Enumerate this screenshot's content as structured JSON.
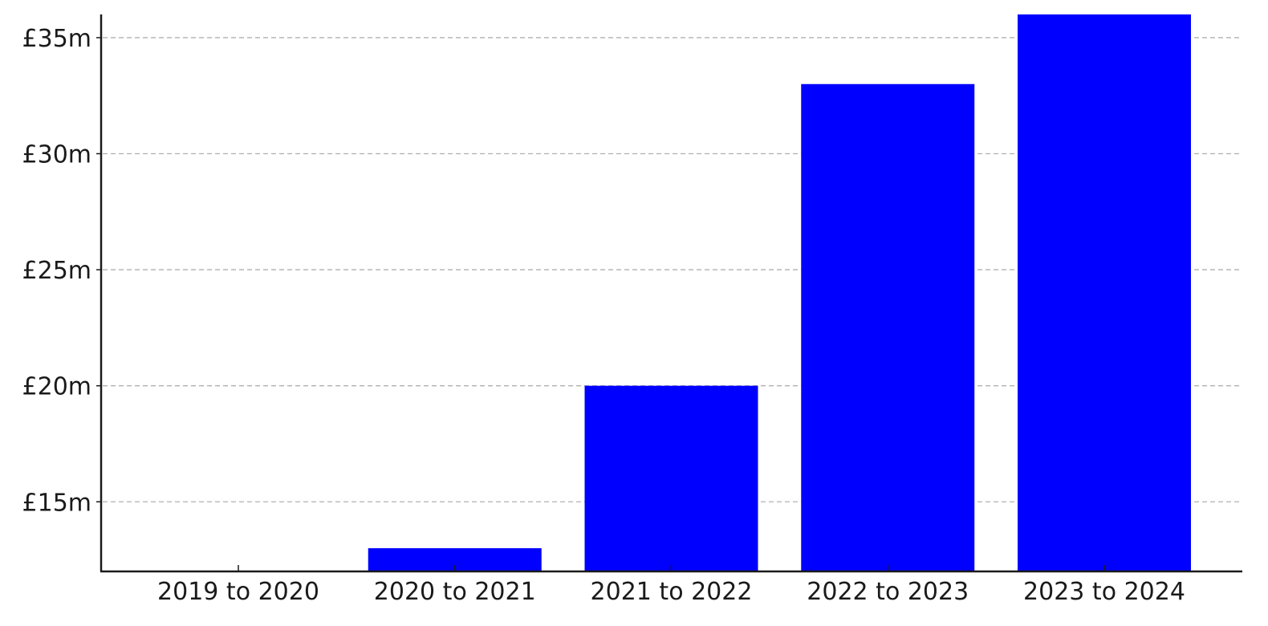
{
  "chart_data": {
    "type": "bar",
    "title": "",
    "xlabel": "",
    "ylabel": "",
    "categories": [
      "2019 to 2020",
      "2020 to 2021",
      "2021 to 2022",
      "2022 to 2023",
      "2023 to 2024"
    ],
    "values": [
      12,
      13,
      20,
      33,
      36
    ],
    "ylim": [
      12,
      36
    ],
    "yticks": [
      15,
      20,
      25,
      30,
      35
    ],
    "ytick_labels": [
      "£15m",
      "£20m",
      "£25m",
      "£30m",
      "£35m"
    ],
    "grid": "horizontal dashed",
    "bar_color": "#0000ff",
    "grid_color": "#b0b0b0",
    "axis_color": "#1a1a1a",
    "legend": "none"
  }
}
